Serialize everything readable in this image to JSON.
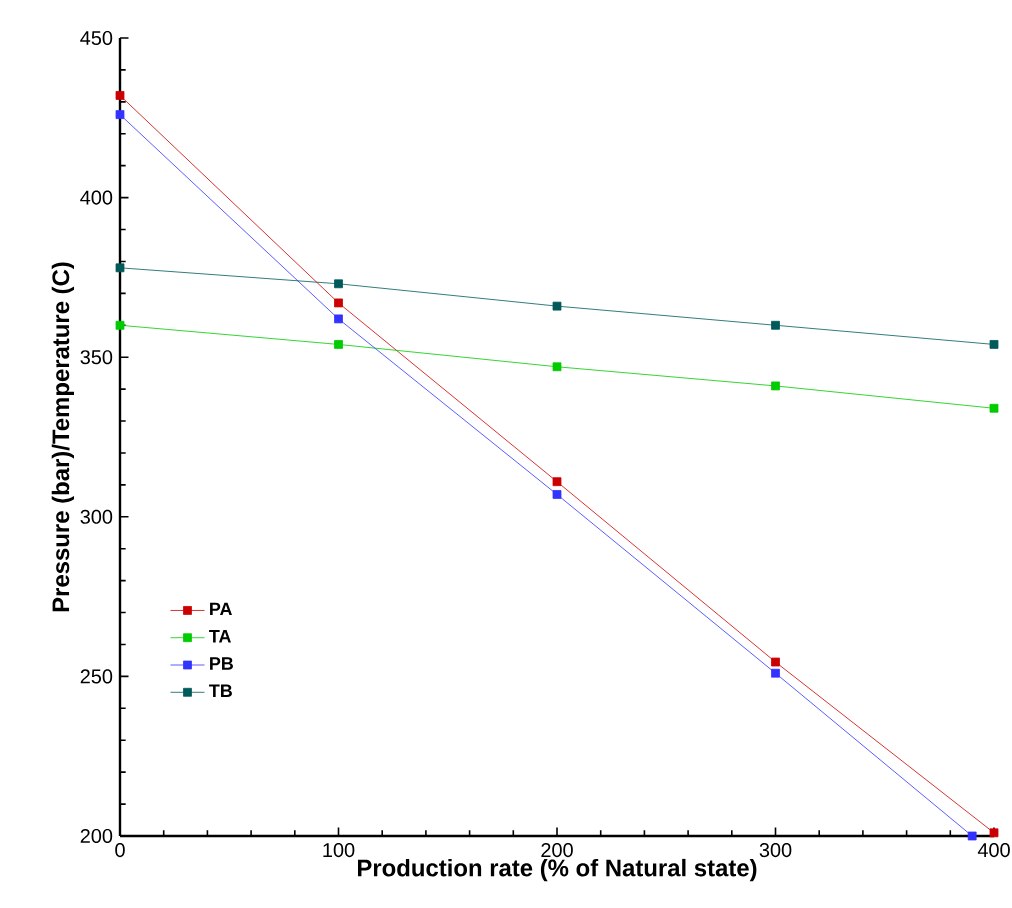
{
  "chart_data": {
    "type": "line",
    "xlabel": "Production rate (% of Natural state)",
    "ylabel": "Pressure (bar)/Temperature (C)",
    "x": [
      0,
      100,
      200,
      300,
      400
    ],
    "series": [
      {
        "name": "PA",
        "color": "#cc0000",
        "values": [
          432,
          367,
          311,
          254.5,
          201
        ]
      },
      {
        "name": "TA",
        "color": "#00cc00",
        "values": [
          360,
          354,
          347,
          341,
          334
        ]
      },
      {
        "name": "PB",
        "color": "#3333ff",
        "x": [
          0,
          100,
          200,
          300,
          390
        ],
        "values": [
          426,
          362,
          307,
          251,
          200
        ]
      },
      {
        "name": "TB",
        "color": "#005a5a",
        "values": [
          378,
          373,
          366,
          360,
          354
        ]
      }
    ],
    "xlim": [
      0,
      400
    ],
    "ylim": [
      200,
      450
    ],
    "xticks": [
      0,
      100,
      200,
      300,
      400
    ],
    "yticks": [
      200,
      250,
      300,
      350,
      400,
      450
    ],
    "legend": "bottom left",
    "marker": "square",
    "line_style": "solid",
    "grid": false
  }
}
